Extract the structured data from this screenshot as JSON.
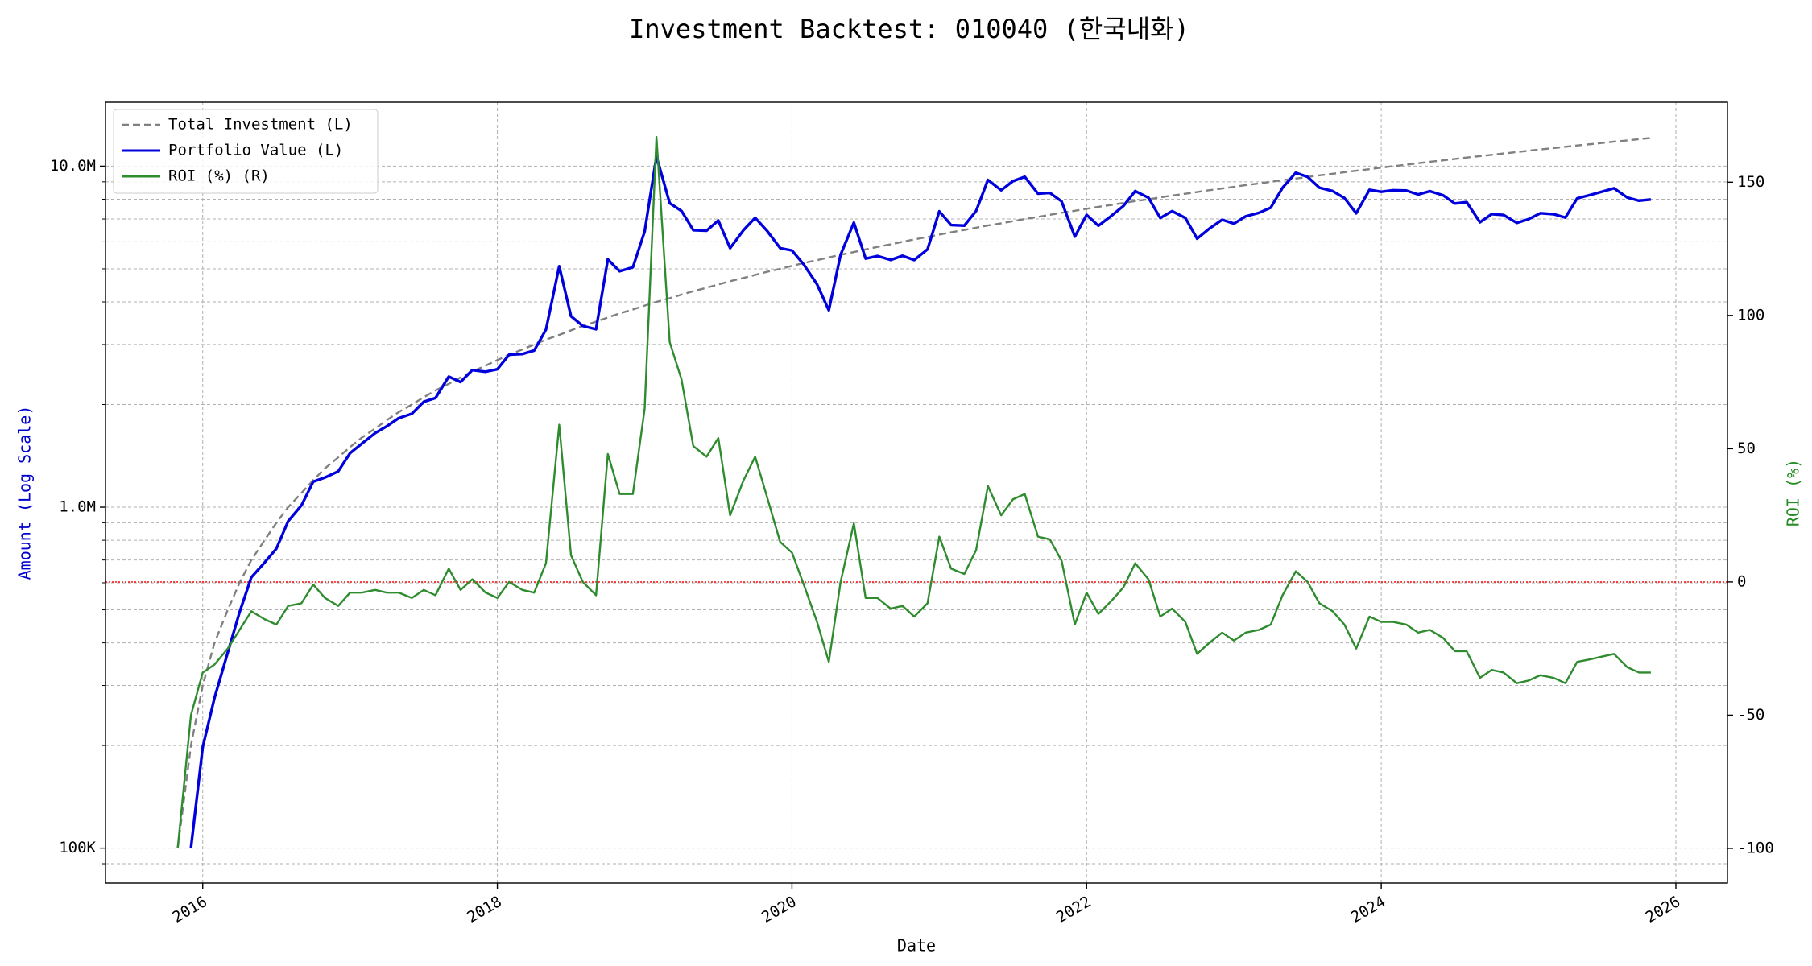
{
  "chart_data": {
    "type": "line",
    "title": "Investment Backtest: 010040 (한국내화)",
    "xlabel": "Date",
    "ylabel": "Amount (Log Scale)",
    "y2label": "ROI (%)",
    "yscale": "log",
    "grid": true,
    "legend": "upper left",
    "xlim": [
      2015.34,
      2026.35
    ],
    "xticks": [
      2016,
      2018,
      2020,
      2022,
      2024,
      2026
    ],
    "ylim": [
      79000,
      15400000
    ],
    "yticks": [
      {
        "value": 100000,
        "label": "100K"
      },
      {
        "value": 1000000,
        "label": "1.0M"
      },
      {
        "value": 10000000,
        "label": "10.0M"
      }
    ],
    "yminorticks": [
      90000,
      200000,
      300000,
      400000,
      500000,
      600000,
      700000,
      800000,
      900000,
      2000000,
      3000000,
      4000000,
      5000000,
      6000000,
      7000000,
      8000000,
      9000000
    ],
    "y2lim": [
      -113,
      180
    ],
    "y2ticks": [
      -100,
      -50,
      0,
      50,
      100,
      150
    ],
    "hline": {
      "value": 0,
      "axis": "y2",
      "color": "#ff0000"
    },
    "tick_colors": {
      "y": "#0000cc",
      "y2": "#228b22"
    },
    "x": [
      2015.83,
      2015.92,
      2016.0,
      2016.08,
      2016.17,
      2016.25,
      2016.33,
      2016.42,
      2016.5,
      2016.58,
      2016.67,
      2016.75,
      2016.83,
      2016.92,
      2017.0,
      2017.08,
      2017.17,
      2017.25,
      2017.33,
      2017.42,
      2017.5,
      2017.58,
      2017.67,
      2017.75,
      2017.83,
      2017.92,
      2018.0,
      2018.08,
      2018.17,
      2018.25,
      2018.33,
      2018.42,
      2018.5,
      2018.58,
      2018.67,
      2018.75,
      2018.83,
      2018.92,
      2019.0,
      2019.08,
      2019.17,
      2019.25,
      2019.33,
      2019.42,
      2019.5,
      2019.58,
      2019.67,
      2019.75,
      2019.83,
      2019.92,
      2020.0,
      2020.08,
      2020.17,
      2020.25,
      2020.33,
      2020.42,
      2020.5,
      2020.58,
      2020.67,
      2020.75,
      2020.83,
      2020.92,
      2021.0,
      2021.08,
      2021.17,
      2021.25,
      2021.33,
      2021.42,
      2021.5,
      2021.58,
      2021.67,
      2021.75,
      2021.83,
      2021.92,
      2022.0,
      2022.08,
      2022.17,
      2022.25,
      2022.33,
      2022.42,
      2022.5,
      2022.58,
      2022.67,
      2022.75,
      2022.83,
      2022.92,
      2023.0,
      2023.08,
      2023.17,
      2023.25,
      2023.33,
      2023.42,
      2023.5,
      2023.58,
      2023.67,
      2023.75,
      2023.83,
      2023.92,
      2024.0,
      2024.08,
      2024.17,
      2024.25,
      2024.33,
      2024.42,
      2024.5,
      2024.58,
      2024.67,
      2024.75,
      2024.83,
      2024.92,
      2025.0,
      2025.08,
      2025.17,
      2025.25,
      2025.33,
      2025.42,
      2025.5,
      2025.58,
      2025.67,
      2025.75,
      2025.83
    ],
    "series": [
      {
        "name": "Total Investment (L)",
        "color": "#808080",
        "linestyle": "dashed",
        "axis": "y",
        "values": [
          100000,
          200000,
          300000,
          400000,
          500000,
          600000,
          700000,
          800000,
          900000,
          1000000,
          1100000,
          1200000,
          1300000,
          1400000,
          1500000,
          1600000,
          1700000,
          1800000,
          1900000,
          2000000,
          2100000,
          2200000,
          2300000,
          2400000,
          2500000,
          2600000,
          2700000,
          2800000,
          2900000,
          3000000,
          3100000,
          3200000,
          3300000,
          3400000,
          3500000,
          3600000,
          3700000,
          3800000,
          3900000,
          4000000,
          4100000,
          4200000,
          4300000,
          4400000,
          4500000,
          4600000,
          4700000,
          4800000,
          4900000,
          5000000,
          5100000,
          5200000,
          5300000,
          5400000,
          5500000,
          5600000,
          5700000,
          5800000,
          5900000,
          6000000,
          6100000,
          6200000,
          6300000,
          6400000,
          6500000,
          6600000,
          6700000,
          6800000,
          6900000,
          7000000,
          7100000,
          7200000,
          7300000,
          7400000,
          7500000,
          7600000,
          7700000,
          7800000,
          7900000,
          8000000,
          8100000,
          8200000,
          8300000,
          8400000,
          8500000,
          8600000,
          8700000,
          8800000,
          8900000,
          9000000,
          9100000,
          9200000,
          9300000,
          9400000,
          9500000,
          9600000,
          9700000,
          9800000,
          9900000,
          10000000,
          10100000,
          10200000,
          10300000,
          10400000,
          10500000,
          10600000,
          10700000,
          10800000,
          10900000,
          11000000,
          11100000,
          11200000,
          11300000,
          11400000,
          11500000,
          11600000,
          11700000,
          11800000,
          11900000,
          12000000,
          12100000
        ]
      },
      {
        "name": "Portfolio Value (L)",
        "color": "#0000dd",
        "linestyle": "solid",
        "axis": "y",
        "values": [
          null,
          100000,
          198000,
          276000,
          375000,
          492000,
          623000,
          688000,
          756000,
          910000,
          1012000,
          1188000,
          1222000,
          1274000,
          1440000,
          1536000,
          1649000,
          1728000,
          1824000,
          1880000,
          2037000,
          2090000,
          2415000,
          2328000,
          2525000,
          2496000,
          2538000,
          2800000,
          2813000,
          2880000,
          3317000,
          5088000,
          3630000,
          3400000,
          3325000,
          5328000,
          4921000,
          5054000,
          6435000,
          10680000,
          7790000,
          7392000,
          6493000,
          6468000,
          6930000,
          5750000,
          6486000,
          7056000,
          6468000,
          5750000,
          5661000,
          5148000,
          4505000,
          3780000,
          5500000,
          6832000,
          5358000,
          5452000,
          5310000,
          5460000,
          5307000,
          5704000,
          7371000,
          6720000,
          6695000,
          7392000,
          9112000,
          8500000,
          9039000,
          9310000,
          8307000,
          8352000,
          7884000,
          6216000,
          7200000,
          6688000,
          7161000,
          7644000,
          8453000,
          8080000,
          7047000,
          7380000,
          7055000,
          6132000,
          6545000,
          6966000,
          6786000,
          7128000,
          7298000,
          7560000,
          8645000,
          9568000,
          9300000,
          8648000,
          8455000,
          8064000,
          7275000,
          8526000,
          8415000,
          8500000,
          8484000,
          8262000,
          8446000,
          8216000,
          7770000,
          7844000,
          6848000,
          7236000,
          7194000,
          6820000,
          6993000,
          7280000,
          7232000,
          7068000,
          8050000,
          8236000,
          8424000,
          8614000,
          8092000,
          7920000,
          7986000
        ]
      },
      {
        "name": "ROI (%) (R)",
        "color": "#2e8b2e",
        "linestyle": "solid",
        "axis": "y2",
        "values": [
          -100,
          -50,
          -34,
          -31,
          -25,
          -18,
          -11,
          -14,
          -16,
          -9,
          -8,
          -1,
          -6,
          -9,
          -4,
          -4,
          -3,
          -4,
          -4,
          -6,
          -3,
          -5,
          5,
          -3,
          1,
          -4,
          -6,
          0,
          -3,
          -4,
          7,
          59,
          10,
          0,
          -5,
          48,
          33,
          33,
          65,
          167,
          90,
          76,
          51,
          47,
          54,
          25,
          38,
          47,
          32,
          15,
          11,
          -1,
          -15,
          -30,
          0,
          22,
          -6,
          -6,
          -10,
          -9,
          -13,
          -8,
          17,
          5,
          3,
          12,
          36,
          25,
          31,
          33,
          17,
          16,
          8,
          -16,
          -4,
          -12,
          -7,
          -2,
          7,
          1,
          -13,
          -10,
          -15,
          -27,
          -23,
          -19,
          -22,
          -19,
          -18,
          -16,
          -5,
          4,
          0,
          -8,
          -11,
          -16,
          -25,
          -13,
          -15,
          -15,
          -16,
          -19,
          -18,
          -21,
          -26,
          -26,
          -36,
          -33,
          -34,
          -38,
          -37,
          -35,
          -36,
          -38,
          -30,
          -29,
          -28,
          -27,
          -32,
          -34,
          -34
        ]
      }
    ]
  }
}
